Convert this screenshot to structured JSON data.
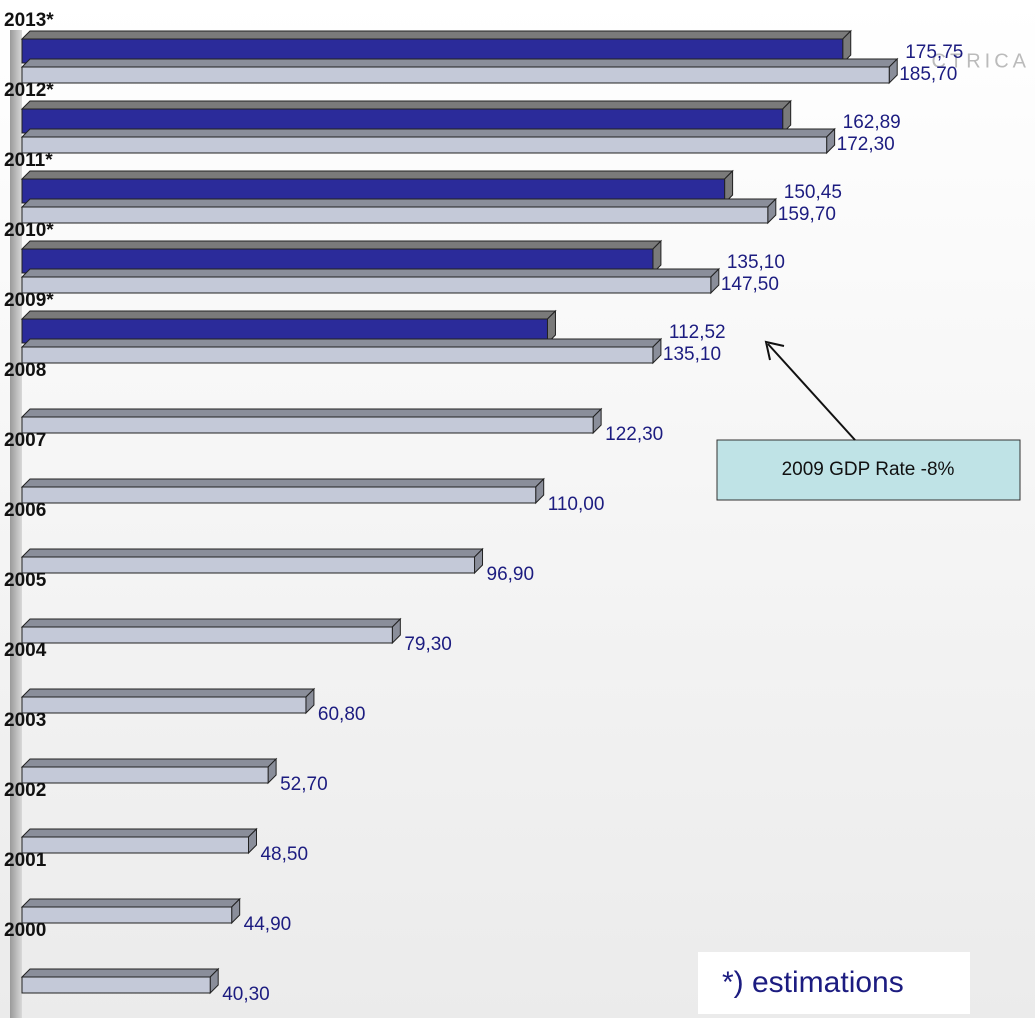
{
  "chart_data": {
    "type": "bar3d-horizontal",
    "categories": [
      "2013*",
      "2012*",
      "2011*",
      "2010*",
      "2009*",
      "2008",
      "2007",
      "2006",
      "2005",
      "2004",
      "2003",
      "2002",
      "2001",
      "2000"
    ],
    "series": [
      {
        "color": "#2b2b9a",
        "values": [
          175.75,
          162.89,
          150.45,
          135.1,
          112.52,
          null,
          null,
          null,
          null,
          null,
          null,
          null,
          null,
          null
        ],
        "value_labels": [
          "175,75",
          "162,89",
          "150,45",
          "135,10",
          "112,52",
          null,
          null,
          null,
          null,
          null,
          null,
          null,
          null,
          null
        ]
      },
      {
        "color": "#c4c9d8",
        "values": [
          185.7,
          172.3,
          159.7,
          147.5,
          135.1,
          122.3,
          110.0,
          96.9,
          79.3,
          60.8,
          52.7,
          48.5,
          44.9,
          40.3
        ],
        "value_labels": [
          "185,70",
          "172,30",
          "159,70",
          "147,50",
          "135,10",
          "122,30",
          "110,00",
          "96,90",
          "79,30",
          "60,80",
          "52,70",
          "48,50",
          "44,90",
          "40,30"
        ]
      }
    ],
    "annotations": [
      "2009 GDP Rate -8%",
      "*) estimations"
    ],
    "watermark": "CTRICA"
  }
}
